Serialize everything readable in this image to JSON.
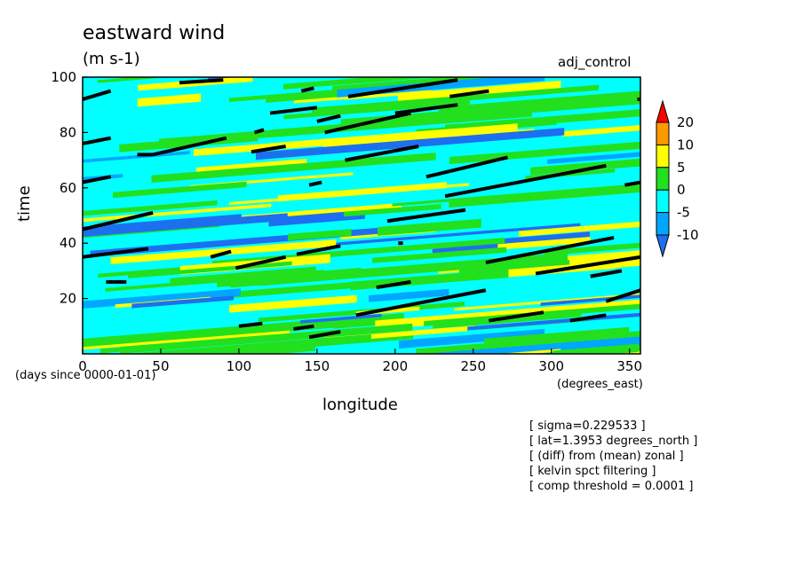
{
  "chart_data": {
    "type": "heatmap",
    "title": "eastward wind",
    "units": "(m s-1)",
    "run_label": "adj_control",
    "xlabel": "longitude",
    "xunits": "(degrees_east)",
    "ylabel": "time",
    "time_units": "(days since 0000-01-01)",
    "xlim": [
      0,
      357
    ],
    "ylim": [
      0,
      100
    ],
    "x_ticks": [
      "0",
      "50",
      "100",
      "150",
      "200",
      "250",
      "300",
      "350"
    ],
    "x_tick_values": [
      0,
      50,
      100,
      150,
      200,
      250,
      300,
      350
    ],
    "y_ticks": [
      "20",
      "40",
      "60",
      "80",
      "100"
    ],
    "y_tick_values": [
      20,
      40,
      60,
      80,
      100
    ],
    "colorbar": {
      "levels": [
        -10,
        -5,
        0,
        5,
        10,
        20
      ],
      "labels": [
        "20",
        "10",
        "5",
        "0",
        "-5",
        "-10"
      ],
      "colors": [
        "#1e6ff0",
        "#00a6ff",
        "#00ffff",
        "#22e01e",
        "#ffff00",
        "#ff9900",
        "#ff0000"
      ],
      "extend": "both"
    },
    "threshold_contour": {
      "color": "#000000",
      "segments": [
        [
          [
            0,
            92
          ],
          [
            18,
            95
          ]
        ],
        [
          [
            62,
            98
          ],
          [
            90,
            99
          ]
        ],
        [
          [
            140,
            95
          ],
          [
            148,
            96
          ]
        ],
        [
          [
            170,
            93
          ],
          [
            240,
            99
          ]
        ],
        [
          [
            235,
            93
          ],
          [
            260,
            95
          ]
        ],
        [
          [
            120,
            87
          ],
          [
            150,
            89
          ]
        ],
        [
          [
            150,
            84
          ],
          [
            165,
            86
          ]
        ],
        [
          [
            155,
            80
          ],
          [
            210,
            87
          ]
        ],
        [
          [
            200,
            87
          ],
          [
            240,
            90
          ]
        ],
        [
          [
            0,
            76
          ],
          [
            18,
            78
          ]
        ],
        [
          [
            110,
            80
          ],
          [
            116,
            81
          ]
        ],
        [
          [
            35,
            72
          ],
          [
            45,
            72
          ]
        ],
        [
          [
            45,
            72
          ],
          [
            92,
            78
          ]
        ],
        [
          [
            108,
            73
          ],
          [
            130,
            75
          ]
        ],
        [
          [
            168,
            70
          ],
          [
            215,
            75
          ]
        ],
        [
          [
            0,
            62
          ],
          [
            18,
            64
          ]
        ],
        [
          [
            145,
            61
          ],
          [
            153,
            62
          ]
        ],
        [
          [
            220,
            64
          ],
          [
            272,
            71
          ]
        ],
        [
          [
            232,
            57
          ],
          [
            335,
            68
          ]
        ],
        [
          [
            347,
            61
          ],
          [
            357,
            62
          ]
        ],
        [
          [
            0,
            45
          ],
          [
            45,
            51
          ]
        ],
        [
          [
            0,
            35
          ],
          [
            42,
            38
          ]
        ],
        [
          [
            82,
            35
          ],
          [
            95,
            37
          ]
        ],
        [
          [
            98,
            31
          ],
          [
            130,
            35
          ]
        ],
        [
          [
            137,
            36
          ],
          [
            165,
            39
          ]
        ],
        [
          [
            195,
            48
          ],
          [
            245,
            52
          ]
        ],
        [
          [
            202,
            40
          ],
          [
            205,
            40
          ]
        ],
        [
          [
            258,
            33
          ],
          [
            340,
            42
          ]
        ],
        [
          [
            290,
            29
          ],
          [
            357,
            35
          ]
        ],
        [
          [
            325,
            28
          ],
          [
            345,
            30
          ]
        ],
        [
          [
            15,
            26
          ],
          [
            28,
            26
          ]
        ],
        [
          [
            188,
            24
          ],
          [
            210,
            26
          ]
        ],
        [
          [
            175,
            14
          ],
          [
            258,
            23
          ]
        ],
        [
          [
            260,
            12
          ],
          [
            295,
            15
          ]
        ],
        [
          [
            335,
            19
          ],
          [
            357,
            23
          ]
        ],
        [
          [
            312,
            12
          ],
          [
            335,
            14
          ]
        ],
        [
          [
            100,
            10
          ],
          [
            115,
            11
          ]
        ],
        [
          [
            135,
            9
          ],
          [
            148,
            10
          ]
        ],
        [
          [
            145,
            6
          ],
          [
            165,
            8
          ]
        ],
        [
          [
            355,
            92
          ],
          [
            357,
            92
          ]
        ]
      ]
    }
  },
  "notes": [
    "[ sigma=0.229533 ]",
    "[ lat=1.3953 degrees_north ]",
    "[ (diff) from (mean) zonal ]",
    "[ kelvin spct filtering ]",
    "[ comp threshold = 0.0001 ]"
  ]
}
